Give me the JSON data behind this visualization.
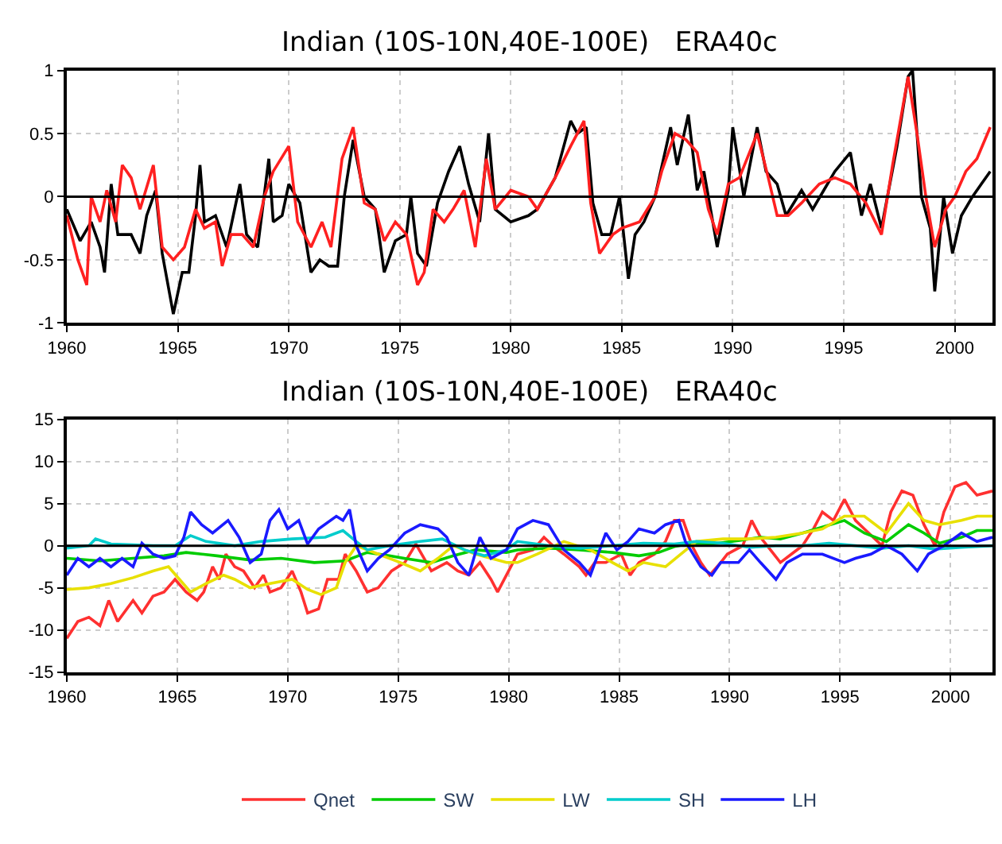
{
  "chart_data": [
    {
      "type": "line",
      "title": "Indian (10S-10N,40E-100E)   ERA40c",
      "xlim": [
        1960,
        2001.7
      ],
      "ylim": [
        -1,
        1
      ],
      "xticks": [
        1960,
        1965,
        1970,
        1975,
        1980,
        1985,
        1990,
        1995,
        2000
      ],
      "yticks": [
        -1,
        -0.5,
        0,
        0.5,
        1
      ],
      "grid": true,
      "legend": false,
      "ref_lines": [
        {
          "axis": "y",
          "value": 0,
          "color": "#000000"
        }
      ],
      "series": [
        {
          "color": "#000000",
          "x": [
            1960.0,
            1960.6,
            1961.1,
            1961.5,
            1961.7,
            1962.0,
            1962.3,
            1962.9,
            1963.3,
            1963.6,
            1964.0,
            1964.3,
            1964.8,
            1965.2,
            1965.5,
            1965.8,
            1966.0,
            1966.2,
            1966.7,
            1967.2,
            1967.8,
            1968.1,
            1968.6,
            1969.1,
            1969.3,
            1969.7,
            1970.0,
            1970.5,
            1971.0,
            1971.4,
            1971.8,
            1972.2,
            1972.5,
            1972.9,
            1973.4,
            1973.9,
            1974.3,
            1974.8,
            1975.3,
            1975.5,
            1975.8,
            1976.2,
            1976.7,
            1977.2,
            1977.7,
            1978.1,
            1978.6,
            1979.0,
            1979.3,
            1980.0,
            1980.8,
            1981.2,
            1982.0,
            1982.7,
            1983.0,
            1983.4,
            1983.7,
            1984.1,
            1984.5,
            1984.9,
            1985.3,
            1985.6,
            1986.0,
            1986.5,
            1987.2,
            1987.5,
            1988.0,
            1988.4,
            1988.7,
            1989.3,
            1989.8,
            1990.0,
            1990.5,
            1991.1,
            1991.5,
            1992.0,
            1992.4,
            1993.1,
            1993.6,
            1994.1,
            1994.6,
            1995.3,
            1995.8,
            1996.2,
            1996.7,
            1997.4,
            1997.9,
            1998.1,
            1998.5,
            1998.9,
            1999.1,
            1999.5,
            1999.9,
            2000.3,
            2000.8,
            2001.2,
            2001.6
          ],
          "values": [
            -0.1,
            -0.35,
            -0.2,
            -0.4,
            -0.6,
            0.1,
            -0.3,
            -0.3,
            -0.45,
            -0.15,
            0.05,
            -0.45,
            -0.93,
            -0.6,
            -0.6,
            -0.15,
            0.25,
            -0.2,
            -0.15,
            -0.4,
            0.1,
            -0.3,
            -0.4,
            0.3,
            -0.2,
            -0.15,
            0.1,
            -0.05,
            -0.6,
            -0.5,
            -0.55,
            -0.55,
            0.0,
            0.45,
            0.0,
            -0.1,
            -0.6,
            -0.35,
            -0.3,
            0.0,
            -0.45,
            -0.55,
            -0.05,
            0.2,
            0.4,
            0.1,
            -0.2,
            0.5,
            -0.1,
            -0.2,
            -0.15,
            -0.1,
            0.15,
            0.6,
            0.5,
            0.55,
            -0.05,
            -0.3,
            -0.3,
            0.0,
            -0.65,
            -0.3,
            -0.2,
            0.0,
            0.55,
            0.25,
            0.65,
            0.05,
            0.2,
            -0.4,
            0.05,
            0.55,
            0.0,
            0.55,
            0.2,
            0.1,
            -0.15,
            0.05,
            -0.1,
            0.05,
            0.2,
            0.35,
            -0.15,
            0.1,
            -0.25,
            0.4,
            0.95,
            1.0,
            0.0,
            -0.25,
            -0.75,
            0.0,
            -0.45,
            -0.15,
            0.0,
            0.1,
            0.2
          ]
        },
        {
          "color": "#ff2020",
          "x": [
            1960.0,
            1960.5,
            1960.9,
            1961.1,
            1961.5,
            1961.8,
            1962.2,
            1962.5,
            1962.9,
            1963.3,
            1963.9,
            1964.3,
            1964.8,
            1965.3,
            1965.8,
            1966.2,
            1966.7,
            1967.0,
            1967.4,
            1967.9,
            1968.4,
            1968.9,
            1969.3,
            1970.0,
            1970.4,
            1971.0,
            1971.5,
            1971.9,
            1972.4,
            1972.9,
            1973.4,
            1973.9,
            1974.3,
            1974.8,
            1975.3,
            1975.8,
            1976.1,
            1976.5,
            1977.0,
            1977.4,
            1977.9,
            1978.4,
            1978.9,
            1979.3,
            1980.0,
            1980.8,
            1981.2,
            1982.0,
            1982.7,
            1983.3,
            1983.6,
            1984.0,
            1984.6,
            1985.0,
            1985.8,
            1986.5,
            1986.8,
            1987.4,
            1987.9,
            1988.4,
            1988.9,
            1989.3,
            1989.8,
            1990.3,
            1991.1,
            1991.6,
            1992.0,
            1992.5,
            1993.1,
            1993.9,
            1994.6,
            1995.3,
            1996.0,
            1996.7,
            1997.2,
            1997.9,
            1998.3,
            1998.7,
            1999.1,
            1999.6,
            2000.0,
            2000.5,
            2001.0,
            2001.6
          ],
          "values": [
            -0.15,
            -0.5,
            -0.7,
            0.0,
            -0.2,
            0.05,
            -0.2,
            0.25,
            0.15,
            -0.1,
            0.25,
            -0.4,
            -0.5,
            -0.4,
            -0.1,
            -0.25,
            -0.2,
            -0.55,
            -0.3,
            -0.3,
            -0.4,
            0.0,
            0.2,
            0.4,
            -0.2,
            -0.4,
            -0.2,
            -0.4,
            0.3,
            0.55,
            -0.05,
            -0.1,
            -0.35,
            -0.2,
            -0.3,
            -0.7,
            -0.6,
            -0.1,
            -0.2,
            -0.1,
            0.05,
            -0.4,
            0.3,
            -0.1,
            0.05,
            0.0,
            -0.1,
            0.15,
            0.4,
            0.6,
            -0.05,
            -0.45,
            -0.3,
            -0.25,
            -0.2,
            0.0,
            0.2,
            0.5,
            0.45,
            0.35,
            -0.1,
            -0.3,
            0.1,
            0.15,
            0.5,
            0.15,
            -0.15,
            -0.15,
            -0.05,
            0.1,
            0.15,
            0.1,
            -0.05,
            -0.3,
            0.25,
            0.95,
            0.5,
            0.0,
            -0.4,
            -0.1,
            0.0,
            0.2,
            0.3,
            0.55
          ]
        }
      ]
    },
    {
      "type": "line",
      "title": "Indian (10S-10N,40E-100E)   ERA40c",
      "xlim": [
        1960,
        2001.9
      ],
      "ylim": [
        -15,
        15
      ],
      "xticks": [
        1960,
        1965,
        1970,
        1975,
        1980,
        1985,
        1990,
        1995,
        2000
      ],
      "yticks": [
        -15,
        -10,
        -5,
        0,
        5,
        10,
        15
      ],
      "grid": true,
      "legend": "bottom",
      "ref_lines": [
        {
          "axis": "y",
          "value": 0,
          "color": "#000000"
        }
      ],
      "series": [
        {
          "name": "Qnet",
          "color": "#ff3030",
          "x": [
            1960.0,
            1960.5,
            1961.0,
            1961.5,
            1961.9,
            1962.3,
            1963.0,
            1963.4,
            1963.9,
            1964.4,
            1964.9,
            1965.4,
            1965.9,
            1966.2,
            1966.6,
            1966.9,
            1967.2,
            1967.6,
            1968.0,
            1968.5,
            1968.9,
            1969.2,
            1969.7,
            1970.2,
            1970.6,
            1970.9,
            1971.4,
            1971.8,
            1972.3,
            1972.6,
            1973.1,
            1973.6,
            1974.1,
            1974.7,
            1975.3,
            1975.8,
            1976.5,
            1977.2,
            1977.7,
            1978.2,
            1978.7,
            1979.2,
            1979.5,
            1979.9,
            1980.4,
            1981.1,
            1981.6,
            1982.0,
            1982.5,
            1983.2,
            1983.5,
            1983.9,
            1984.4,
            1985.1,
            1985.5,
            1985.9,
            1986.6,
            1987.1,
            1987.5,
            1987.9,
            1988.3,
            1988.7,
            1989.1,
            1989.6,
            1989.9,
            1990.6,
            1991.0,
            1991.4,
            1992.0,
            1992.3,
            1992.8,
            1993.3,
            1993.8,
            1994.2,
            1994.7,
            1995.2,
            1995.7,
            1996.1,
            1996.9,
            1997.3,
            1997.8,
            1998.3,
            1998.8,
            1999.3,
            1999.7,
            2000.2,
            2000.7,
            2001.2,
            2001.9
          ],
          "values": [
            -11,
            -9,
            -8.5,
            -9.5,
            -6.5,
            -9,
            -6.5,
            -8,
            -6,
            -5.5,
            -4,
            -5.5,
            -6.5,
            -5.5,
            -2.5,
            -4,
            -1,
            -2.5,
            -3,
            -5,
            -3.5,
            -5.5,
            -5,
            -3,
            -5.5,
            -8,
            -7.5,
            -4,
            -4,
            -1,
            -3,
            -5.5,
            -5,
            -3,
            -2,
            0.2,
            -3,
            -2,
            -3,
            -3.5,
            -2,
            -4,
            -5.5,
            -3.5,
            -1,
            -0.5,
            1,
            0,
            -1,
            -2.5,
            -3.5,
            -2,
            -2,
            -1,
            -3.5,
            -2,
            -1,
            0.5,
            3,
            3,
            0,
            -2,
            -3.5,
            -2,
            -1,
            0,
            3,
            1,
            -1,
            -2,
            -1,
            0,
            2,
            4,
            3,
            5.5,
            3,
            2,
            0,
            4,
            6.5,
            6,
            2.5,
            0,
            4,
            7,
            7.5,
            6,
            6.5
          ]
        },
        {
          "name": "SW",
          "color": "#00cc00",
          "x": [
            1960.0,
            1961.5,
            1963.0,
            1964.4,
            1965.4,
            1966.8,
            1968.3,
            1969.7,
            1971.2,
            1972.6,
            1973.6,
            1974.6,
            1975.5,
            1976.5,
            1977.5,
            1978.5,
            1979.9,
            1980.4,
            1981.8,
            1983.2,
            1984.7,
            1985.9,
            1986.8,
            1987.5,
            1988.3,
            1989.2,
            1990.4,
            1991.4,
            1992.3,
            1993.3,
            1994.2,
            1995.2,
            1996.1,
            1997.1,
            1998.1,
            1998.8,
            1999.5,
            2000.5,
            2001.2,
            2001.9
          ],
          "values": [
            -1.5,
            -1.8,
            -1.5,
            -1.2,
            -0.8,
            -1.2,
            -1.7,
            -1.5,
            -2,
            -1.8,
            -0.8,
            -1.2,
            -1.6,
            -2,
            -1.2,
            -0.5,
            -0.8,
            -0.5,
            -0.3,
            -0.5,
            -0.8,
            -1.2,
            -0.8,
            -0.1,
            0.3,
            0.2,
            0.6,
            1.0,
            0.8,
            1.5,
            2.2,
            3.0,
            1.5,
            0.5,
            2.5,
            1.5,
            0.3,
            1.0,
            1.8,
            1.8
          ]
        },
        {
          "name": "LW",
          "color": "#e8e000",
          "x": [
            1960.0,
            1961.0,
            1962.0,
            1963.0,
            1963.9,
            1964.6,
            1965.1,
            1965.6,
            1966.3,
            1967.1,
            1967.6,
            1968.3,
            1969.2,
            1970.2,
            1970.9,
            1971.5,
            1972.2,
            1972.6,
            1973.1,
            1974.1,
            1975.1,
            1976.0,
            1976.8,
            1977.5,
            1978.5,
            1979.9,
            1980.4,
            1981.3,
            1982.5,
            1983.7,
            1984.7,
            1985.4,
            1986.1,
            1987.1,
            1987.8,
            1988.5,
            1989.7,
            1990.9,
            1992.1,
            1993.3,
            1994.2,
            1995.2,
            1996.1,
            1997.1,
            1998.1,
            1998.8,
            1999.5,
            2000.5,
            2001.2,
            2001.9
          ],
          "values": [
            -5.2,
            -5,
            -4.5,
            -3.8,
            -3,
            -2.5,
            -4,
            -5.5,
            -4.5,
            -3.5,
            -4,
            -5,
            -4.5,
            -4,
            -5.2,
            -5.8,
            -5,
            -2,
            0,
            -1,
            -2,
            -3,
            -1.5,
            0,
            -1,
            -2,
            -2,
            -1,
            0.5,
            -0.5,
            -2,
            -3,
            -2,
            -2.5,
            -1,
            0.5,
            0.8,
            0.8,
            1,
            1.5,
            2,
            3.5,
            3.5,
            1.5,
            5,
            3,
            2.5,
            3,
            3.5,
            3.5
          ]
        },
        {
          "name": "SH",
          "color": "#00cccc",
          "x": [
            1960.0,
            1961.0,
            1961.3,
            1962.0,
            1963.0,
            1963.9,
            1964.9,
            1965.6,
            1966.3,
            1967.6,
            1968.8,
            1970.2,
            1971.7,
            1972.5,
            1973.1,
            1973.6,
            1974.6,
            1976.0,
            1977.0,
            1978.0,
            1978.9,
            1979.9,
            1980.4,
            1981.8,
            1983.2,
            1984.7,
            1986.1,
            1987.5,
            1988.5,
            1989.7,
            1990.9,
            1992.1,
            1993.3,
            1994.5,
            1995.7,
            1996.9,
            1998.1,
            1999.3,
            2000.5,
            2001.9
          ],
          "values": [
            -0.3,
            0.0,
            0.8,
            0.2,
            0.1,
            0.0,
            0.0,
            1.2,
            0.5,
            0.0,
            0.5,
            0.8,
            1.0,
            1.8,
            0.5,
            -0.5,
            0.0,
            0.5,
            0.8,
            -0.5,
            -1.2,
            -0.5,
            0.5,
            0.0,
            -0.3,
            0.0,
            0.3,
            0.2,
            0.5,
            0.3,
            -0.2,
            0.0,
            0.0,
            0.3,
            0.0,
            -0.3,
            0.0,
            -0.4,
            -0.2,
            0.0
          ]
        },
        {
          "name": "LH",
          "color": "#1a1aff",
          "x": [
            1960.0,
            1960.5,
            1961.0,
            1961.5,
            1962.0,
            1962.5,
            1963.0,
            1963.4,
            1963.9,
            1964.4,
            1964.9,
            1965.3,
            1965.6,
            1966.1,
            1966.6,
            1967.3,
            1967.8,
            1968.3,
            1968.8,
            1969.2,
            1969.6,
            1970.0,
            1970.5,
            1970.9,
            1971.4,
            1972.2,
            1972.5,
            1972.8,
            1973.1,
            1973.6,
            1974.1,
            1974.6,
            1975.3,
            1976.0,
            1976.8,
            1977.2,
            1977.7,
            1978.2,
            1978.7,
            1979.2,
            1979.9,
            1980.4,
            1981.1,
            1981.8,
            1982.5,
            1983.2,
            1983.7,
            1984.4,
            1984.9,
            1985.4,
            1985.9,
            1986.6,
            1987.1,
            1987.7,
            1988.0,
            1988.7,
            1989.2,
            1989.6,
            1990.4,
            1990.9,
            1991.4,
            1992.1,
            1992.6,
            1993.3,
            1994.2,
            1995.2,
            1995.7,
            1996.4,
            1997.1,
            1997.8,
            1998.5,
            1999.0,
            1999.7,
            2000.5,
            2001.2,
            2001.9
          ],
          "values": [
            -3.5,
            -1.5,
            -2.5,
            -1.5,
            -2.5,
            -1.5,
            -2.5,
            0.3,
            -1,
            -1.5,
            -1.2,
            1,
            4,
            2.5,
            1.5,
            3,
            1,
            -2,
            -1,
            3,
            4.3,
            2,
            3,
            0.2,
            2,
            3.5,
            3,
            4.3,
            0,
            -3,
            -1.5,
            -0.5,
            1.5,
            2.5,
            2,
            1,
            -2,
            -3.5,
            1,
            -1.5,
            -0.5,
            2,
            3,
            2.5,
            -0.5,
            -2,
            -3.5,
            1.5,
            -0.5,
            0.5,
            2,
            1.5,
            2.5,
            3,
            0.5,
            -2.5,
            -3.5,
            -2,
            -2,
            -0.5,
            -2,
            -4,
            -2,
            -1,
            -1,
            -2,
            -1.5,
            -1,
            0,
            -1,
            -3,
            -1,
            0,
            1.5,
            0.5,
            1
          ]
        }
      ]
    }
  ]
}
